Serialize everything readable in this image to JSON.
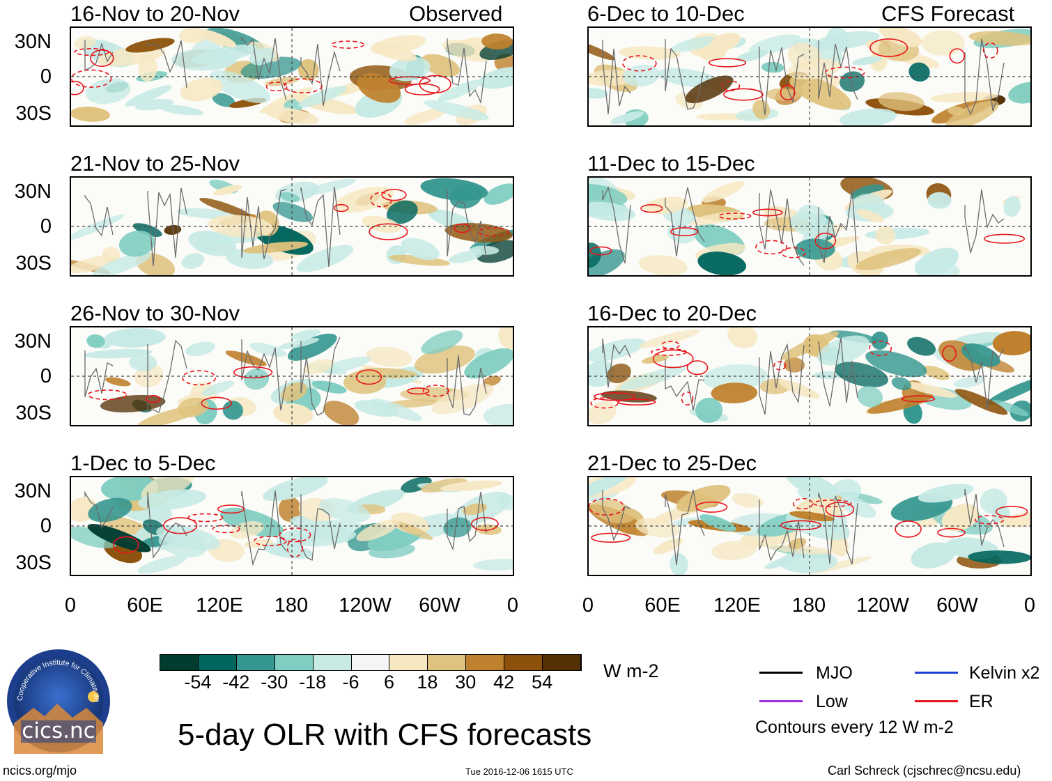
{
  "panels": [
    {
      "id": "p1",
      "title": "16-Nov to 20-Nov",
      "label": "Observed"
    },
    {
      "id": "p2",
      "title": "21-Nov to 25-Nov",
      "label": ""
    },
    {
      "id": "p3",
      "title": "26-Nov to 30-Nov",
      "label": ""
    },
    {
      "id": "p4",
      "title": "1-Dec to 5-Dec",
      "label": ""
    },
    {
      "id": "p5",
      "title": "6-Dec to 10-Dec",
      "label": "CFS Forecast"
    },
    {
      "id": "p6",
      "title": "11-Dec to 15-Dec",
      "label": ""
    },
    {
      "id": "p7",
      "title": "16-Dec to 20-Dec",
      "label": ""
    },
    {
      "id": "p8",
      "title": "21-Dec to 25-Dec",
      "label": ""
    }
  ],
  "y_axis_labels": [
    "30N",
    "0",
    "30S"
  ],
  "x_axis_labels": [
    "0",
    "60E",
    "120E",
    "180",
    "120W",
    "60W",
    "0"
  ],
  "colorbar": {
    "unit": "W m-2",
    "colors": [
      "#003c30",
      "#01665e",
      "#35978f",
      "#80cdc1",
      "#c7eae5",
      "#f5f5f5",
      "#f6e8c3",
      "#dfc27d",
      "#bf812d",
      "#8c510a",
      "#543005"
    ],
    "ticks": [
      "-54",
      "-42",
      "-30",
      "-18",
      "-6",
      "6",
      "18",
      "30",
      "42",
      "54"
    ]
  },
  "legend": {
    "items": [
      {
        "label": "MJO",
        "color": "#000000"
      },
      {
        "label": "Kelvin x2",
        "color": "#1f3fd6"
      },
      {
        "label": "Low",
        "color": "#9b30d9"
      },
      {
        "label": "ER",
        "color": "#e8141c"
      }
    ],
    "note": "Contours every 12 W m-2"
  },
  "title": "5-day OLR with CFS forecasts",
  "logo_text": "cics.nc",
  "logo_ring_text": "Cooperative Institute for Climate and Satellites",
  "footer": {
    "left": "ncics.org/mjo",
    "center": "Tue 2016-12-06 1615 UTC",
    "right": "Carl Schreck (cjschrec@ncsu.edu)"
  }
}
